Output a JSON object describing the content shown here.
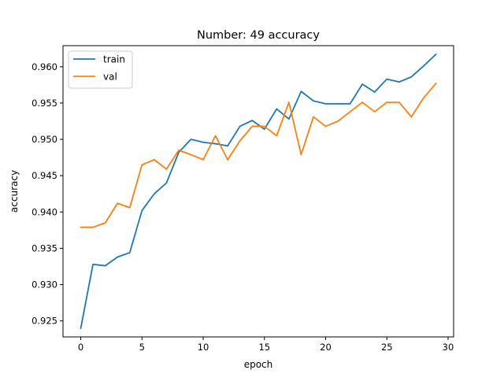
{
  "chart_data": {
    "type": "line",
    "title": "Number: 49 accuracy",
    "xlabel": "epoch",
    "ylabel": "accuracy",
    "xlim": [
      -1.45,
      30.45
    ],
    "ylim": [
      0.9228,
      0.9629
    ],
    "xticks": [
      0,
      5,
      10,
      15,
      20,
      25,
      30
    ],
    "yticks": [
      0.925,
      0.93,
      0.935,
      0.94,
      0.945,
      0.95,
      0.955,
      0.96
    ],
    "grid": false,
    "legend": "top-left",
    "x": [
      0,
      1,
      2,
      3,
      4,
      5,
      6,
      7,
      8,
      9,
      10,
      11,
      12,
      13,
      14,
      15,
      16,
      17,
      18,
      19,
      20,
      21,
      22,
      23,
      24,
      25,
      26,
      27,
      28,
      29
    ],
    "series": [
      {
        "name": "train",
        "color": "#1f77b4",
        "values": [
          0.924,
          0.9328,
          0.9326,
          0.9338,
          0.9344,
          0.9402,
          0.9425,
          0.944,
          0.9482,
          0.95,
          0.9496,
          0.9494,
          0.9491,
          0.9518,
          0.9526,
          0.9514,
          0.9542,
          0.9528,
          0.9566,
          0.9553,
          0.9549,
          0.9549,
          0.9549,
          0.9576,
          0.9565,
          0.9583,
          0.9579,
          0.9586,
          0.9601,
          0.9617
        ]
      },
      {
        "name": "val",
        "color": "#ff7f0e",
        "values": [
          0.9379,
          0.9379,
          0.9385,
          0.9412,
          0.9406,
          0.9465,
          0.9472,
          0.9459,
          0.9485,
          0.9479,
          0.9472,
          0.9505,
          0.9472,
          0.9498,
          0.9518,
          0.9518,
          0.9505,
          0.9551,
          0.9479,
          0.9531,
          0.9518,
          0.9525,
          0.9538,
          0.9551,
          0.9538,
          0.9551,
          0.9551,
          0.9531,
          0.9557,
          0.9577
        ]
      }
    ]
  }
}
